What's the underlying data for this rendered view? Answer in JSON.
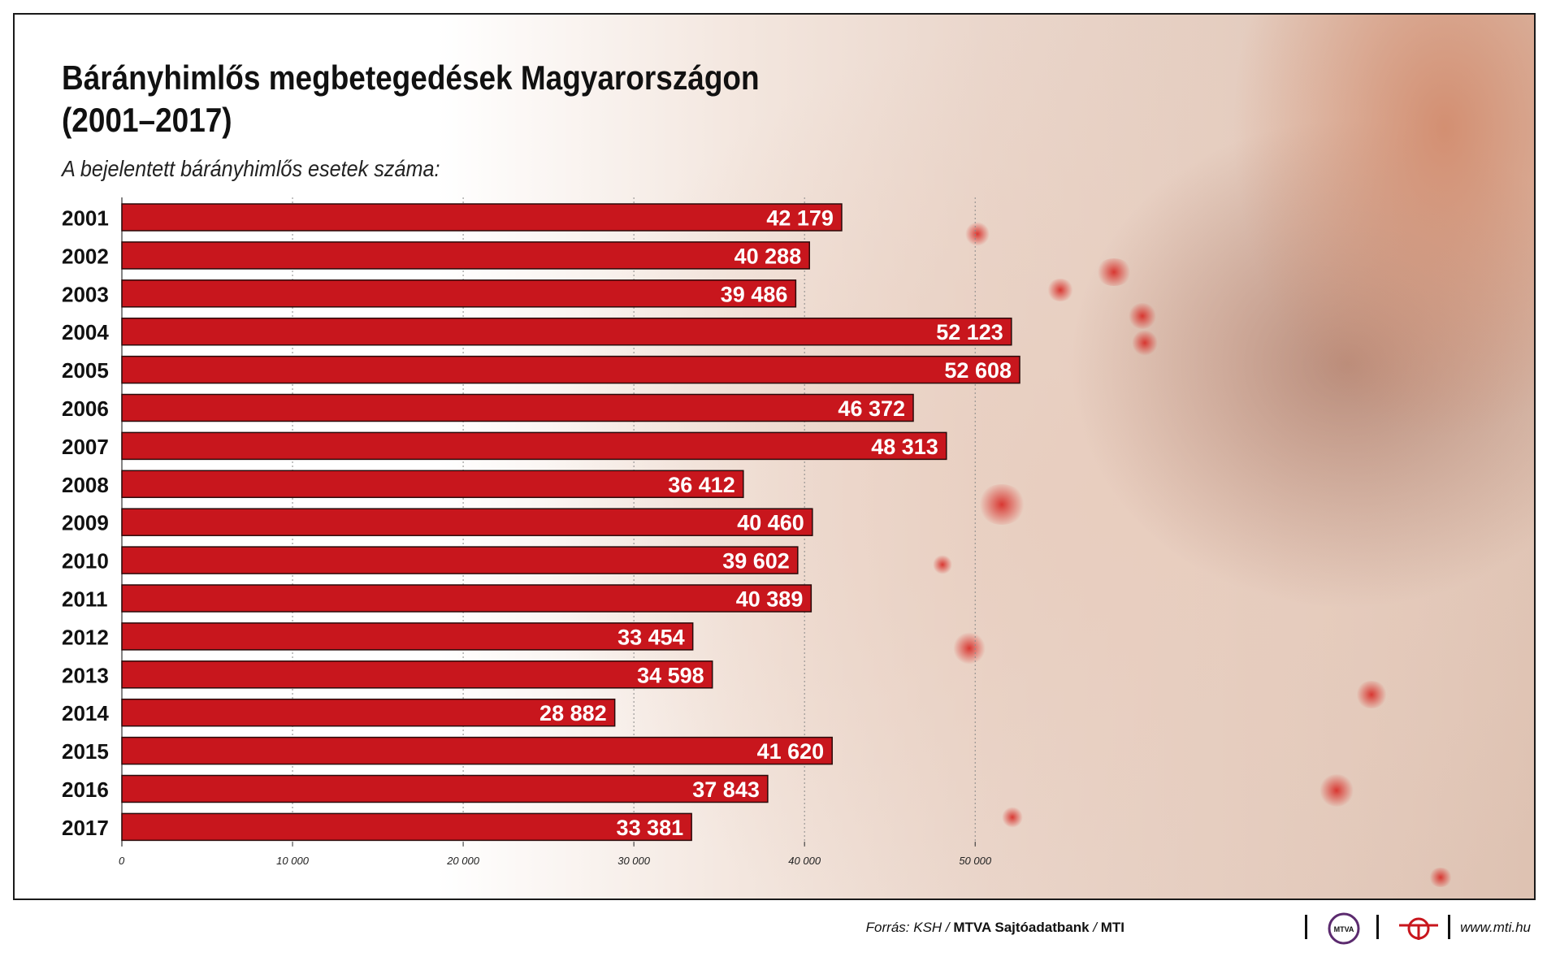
{
  "header": {
    "title_line1": "Bárányhimlős megbetegedések Magyarországon",
    "title_line2": "(2001–2017)",
    "subtitle": "A bejelentett bárányhimlős esetek száma:"
  },
  "chart_data": {
    "type": "bar",
    "orientation": "horizontal",
    "title": "Bárányhimlős megbetegedések Magyarországon (2001–2017)",
    "subtitle": "A bejelentett bárányhimlős esetek száma:",
    "categories": [
      "2001",
      "2002",
      "2003",
      "2004",
      "2005",
      "2006",
      "2007",
      "2008",
      "2009",
      "2010",
      "2011",
      "2012",
      "2013",
      "2014",
      "2015",
      "2016",
      "2017"
    ],
    "values": [
      42179,
      40288,
      39486,
      52123,
      52608,
      46372,
      48313,
      36412,
      40460,
      39602,
      40389,
      33454,
      34598,
      28882,
      41620,
      37843,
      33381
    ],
    "value_labels": [
      "42 179",
      "40 288",
      "39 486",
      "52 123",
      "52 608",
      "46 372",
      "48 313",
      "36 412",
      "40 460",
      "39 602",
      "40 389",
      "33 454",
      "34 598",
      "28 882",
      "41 620",
      "37 843",
      "33 381"
    ],
    "xlim": [
      0,
      52608
    ],
    "xticks": [
      0,
      10000,
      20000,
      30000,
      40000,
      50000
    ],
    "xtick_labels": [
      "0",
      "10 000",
      "20 000",
      "30 000",
      "40 000",
      "50 000"
    ],
    "grid": true,
    "bar_color": "#c8161d",
    "bar_border": "#2a0a0a"
  },
  "footer": {
    "source_prefix": "Forrás: KSH / ",
    "source_bank": "MTVA Sajtóadatbank",
    "source_sep": " / ",
    "source_mti": "MTI",
    "url": "www.mti.hu",
    "logo1_text": "MTVA",
    "accent": "#c8161d"
  }
}
